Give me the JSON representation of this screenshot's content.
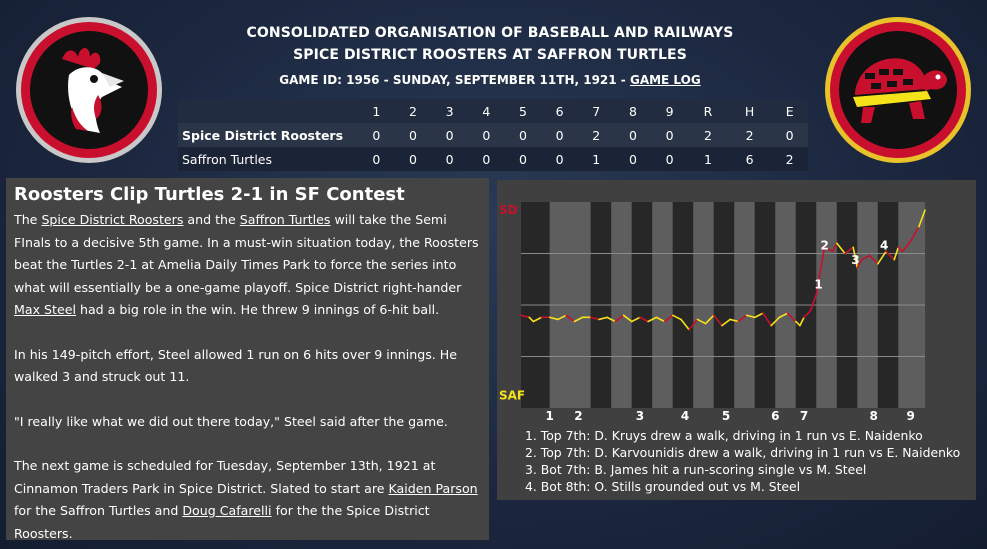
{
  "header": {
    "org": "CONSOLIDATED ORGANISATION OF BASEBALL AND RAILWAYS",
    "matchup": "SPICE DISTRICT ROOSTERS AT SAFFRON TURTLES",
    "game_info": "GAME ID: 1956 - SUNDAY, SEPTEMBER 11TH, 1921 - ",
    "game_log_link": "GAME LOG"
  },
  "logos": {
    "away": "rooster-logo",
    "home": "turtle-logo"
  },
  "colors": {
    "accent_red": "#c8102e",
    "accent_yellow": "#f6e21b",
    "ring_gold": "#e8c22a"
  },
  "linescore": {
    "headers": [
      "",
      "1",
      "2",
      "3",
      "4",
      "5",
      "6",
      "7",
      "8",
      "9",
      "R",
      "H",
      "E"
    ],
    "rows": [
      {
        "team": "Spice District Roosters",
        "cells": [
          "0",
          "0",
          "0",
          "0",
          "0",
          "0",
          "2",
          "0",
          "0",
          "2",
          "2",
          "0"
        ]
      },
      {
        "team": "Saffron Turtles",
        "cells": [
          "0",
          "0",
          "0",
          "0",
          "0",
          "0",
          "1",
          "0",
          "0",
          "1",
          "6",
          "2"
        ]
      }
    ]
  },
  "article": {
    "headline": "Roosters Clip Turtles 2-1 in SF Contest",
    "p1": {
      "t1": "The ",
      "link1": "Spice District Roosters",
      "t2": " and the ",
      "link2": "Saffron Turtles",
      "t3": " will take the Semi FInals to a decisive 5th game. In a must-win situation today, the Roosters beat the Turtles 2-1 at Amelia Daily Times Park to force the series into what will essentially be a one-game playoff. Spice District right-hander ",
      "link3": "Max Steel",
      "t4": " had a big role in the win. He threw 9 innings of 6-hit ball."
    },
    "p2": "In his 149-pitch effort, Steel allowed 1 run on 6 hits over 9 innings. He walked 3 and struck out 11.",
    "p3": "\"I really like what we did out there today,\" Steel said after the game.",
    "p4": {
      "t1": "The next game is scheduled for Tuesday, September 13th, 1921 at Cinnamon Traders Park in Spice District. Slated to start are ",
      "link1": "Kaiden Parson",
      "t2": " for the Saffron Turtles and ",
      "link2": "Doug Cafarelli",
      "t3": " for the the Spice District Roosters."
    }
  },
  "chart_data": {
    "type": "line",
    "top_label": "SD",
    "bottom_label": "SAF",
    "inning_labels": [
      "1",
      "2",
      "3",
      "4",
      "5",
      "6",
      "7",
      "8",
      "9"
    ],
    "inning_label_x": [
      1,
      1.7,
      3.2,
      4.3,
      5.3,
      6.5,
      7.2,
      8.9,
      9.8
    ],
    "band_edges": [
      0.3,
      1,
      2,
      2.5,
      3,
      3.5,
      4,
      4.5,
      5,
      5.5,
      6,
      6.5,
      7,
      7.5,
      8,
      8.5,
      9,
      9.5,
      10.15
    ],
    "ylim": [
      0,
      1
    ],
    "x": [
      0.3,
      0.5,
      0.6,
      0.8,
      1.0,
      1.2,
      1.4,
      1.6,
      1.8,
      2.0,
      2.2,
      2.4,
      2.6,
      2.8,
      3.0,
      3.2,
      3.4,
      3.6,
      3.8,
      4.0,
      4.2,
      4.4,
      4.6,
      4.8,
      5.0,
      5.2,
      5.4,
      5.6,
      5.8,
      6.0,
      6.2,
      6.4,
      6.6,
      6.8,
      7.0,
      7.1,
      7.2,
      7.35,
      7.5,
      7.7,
      7.9,
      8.0,
      8.2,
      8.4,
      8.5,
      8.6,
      8.8,
      9.0,
      9.2,
      9.4,
      9.5,
      9.6,
      9.8,
      10.0,
      10.15
    ],
    "values": [
      0.45,
      0.44,
      0.42,
      0.44,
      0.44,
      0.43,
      0.45,
      0.42,
      0.44,
      0.44,
      0.43,
      0.44,
      0.42,
      0.45,
      0.42,
      0.44,
      0.42,
      0.44,
      0.42,
      0.45,
      0.43,
      0.38,
      0.43,
      0.41,
      0.45,
      0.4,
      0.43,
      0.42,
      0.45,
      0.44,
      0.46,
      0.4,
      0.44,
      0.46,
      0.42,
      0.4,
      0.44,
      0.47,
      0.55,
      0.78,
      0.76,
      0.8,
      0.75,
      0.78,
      0.68,
      0.72,
      0.74,
      0.7,
      0.76,
      0.72,
      0.78,
      0.76,
      0.81,
      0.88,
      0.96
    ],
    "series_colors": [
      "#c8102e",
      "#f6e21b"
    ],
    "annotations": [
      {
        "label": "1",
        "x": 7.55,
        "y": 0.55
      },
      {
        "label": "2",
        "x": 7.7,
        "y": 0.74
      },
      {
        "label": "3",
        "x": 8.45,
        "y": 0.67
      },
      {
        "label": "4",
        "x": 9.15,
        "y": 0.74
      }
    ],
    "notes": [
      "1. Top 7th: D. Kruys drew a walk, driving in 1 run vs E. Naidenko",
      "2. Top 7th: D. Karvounidis drew a walk, driving in 1 run vs E. Naidenko",
      "3. Bot 7th: B. James hit a run-scoring single vs M. Steel",
      "4. Bot 8th: O. Stills grounded out vs M. Steel"
    ]
  }
}
